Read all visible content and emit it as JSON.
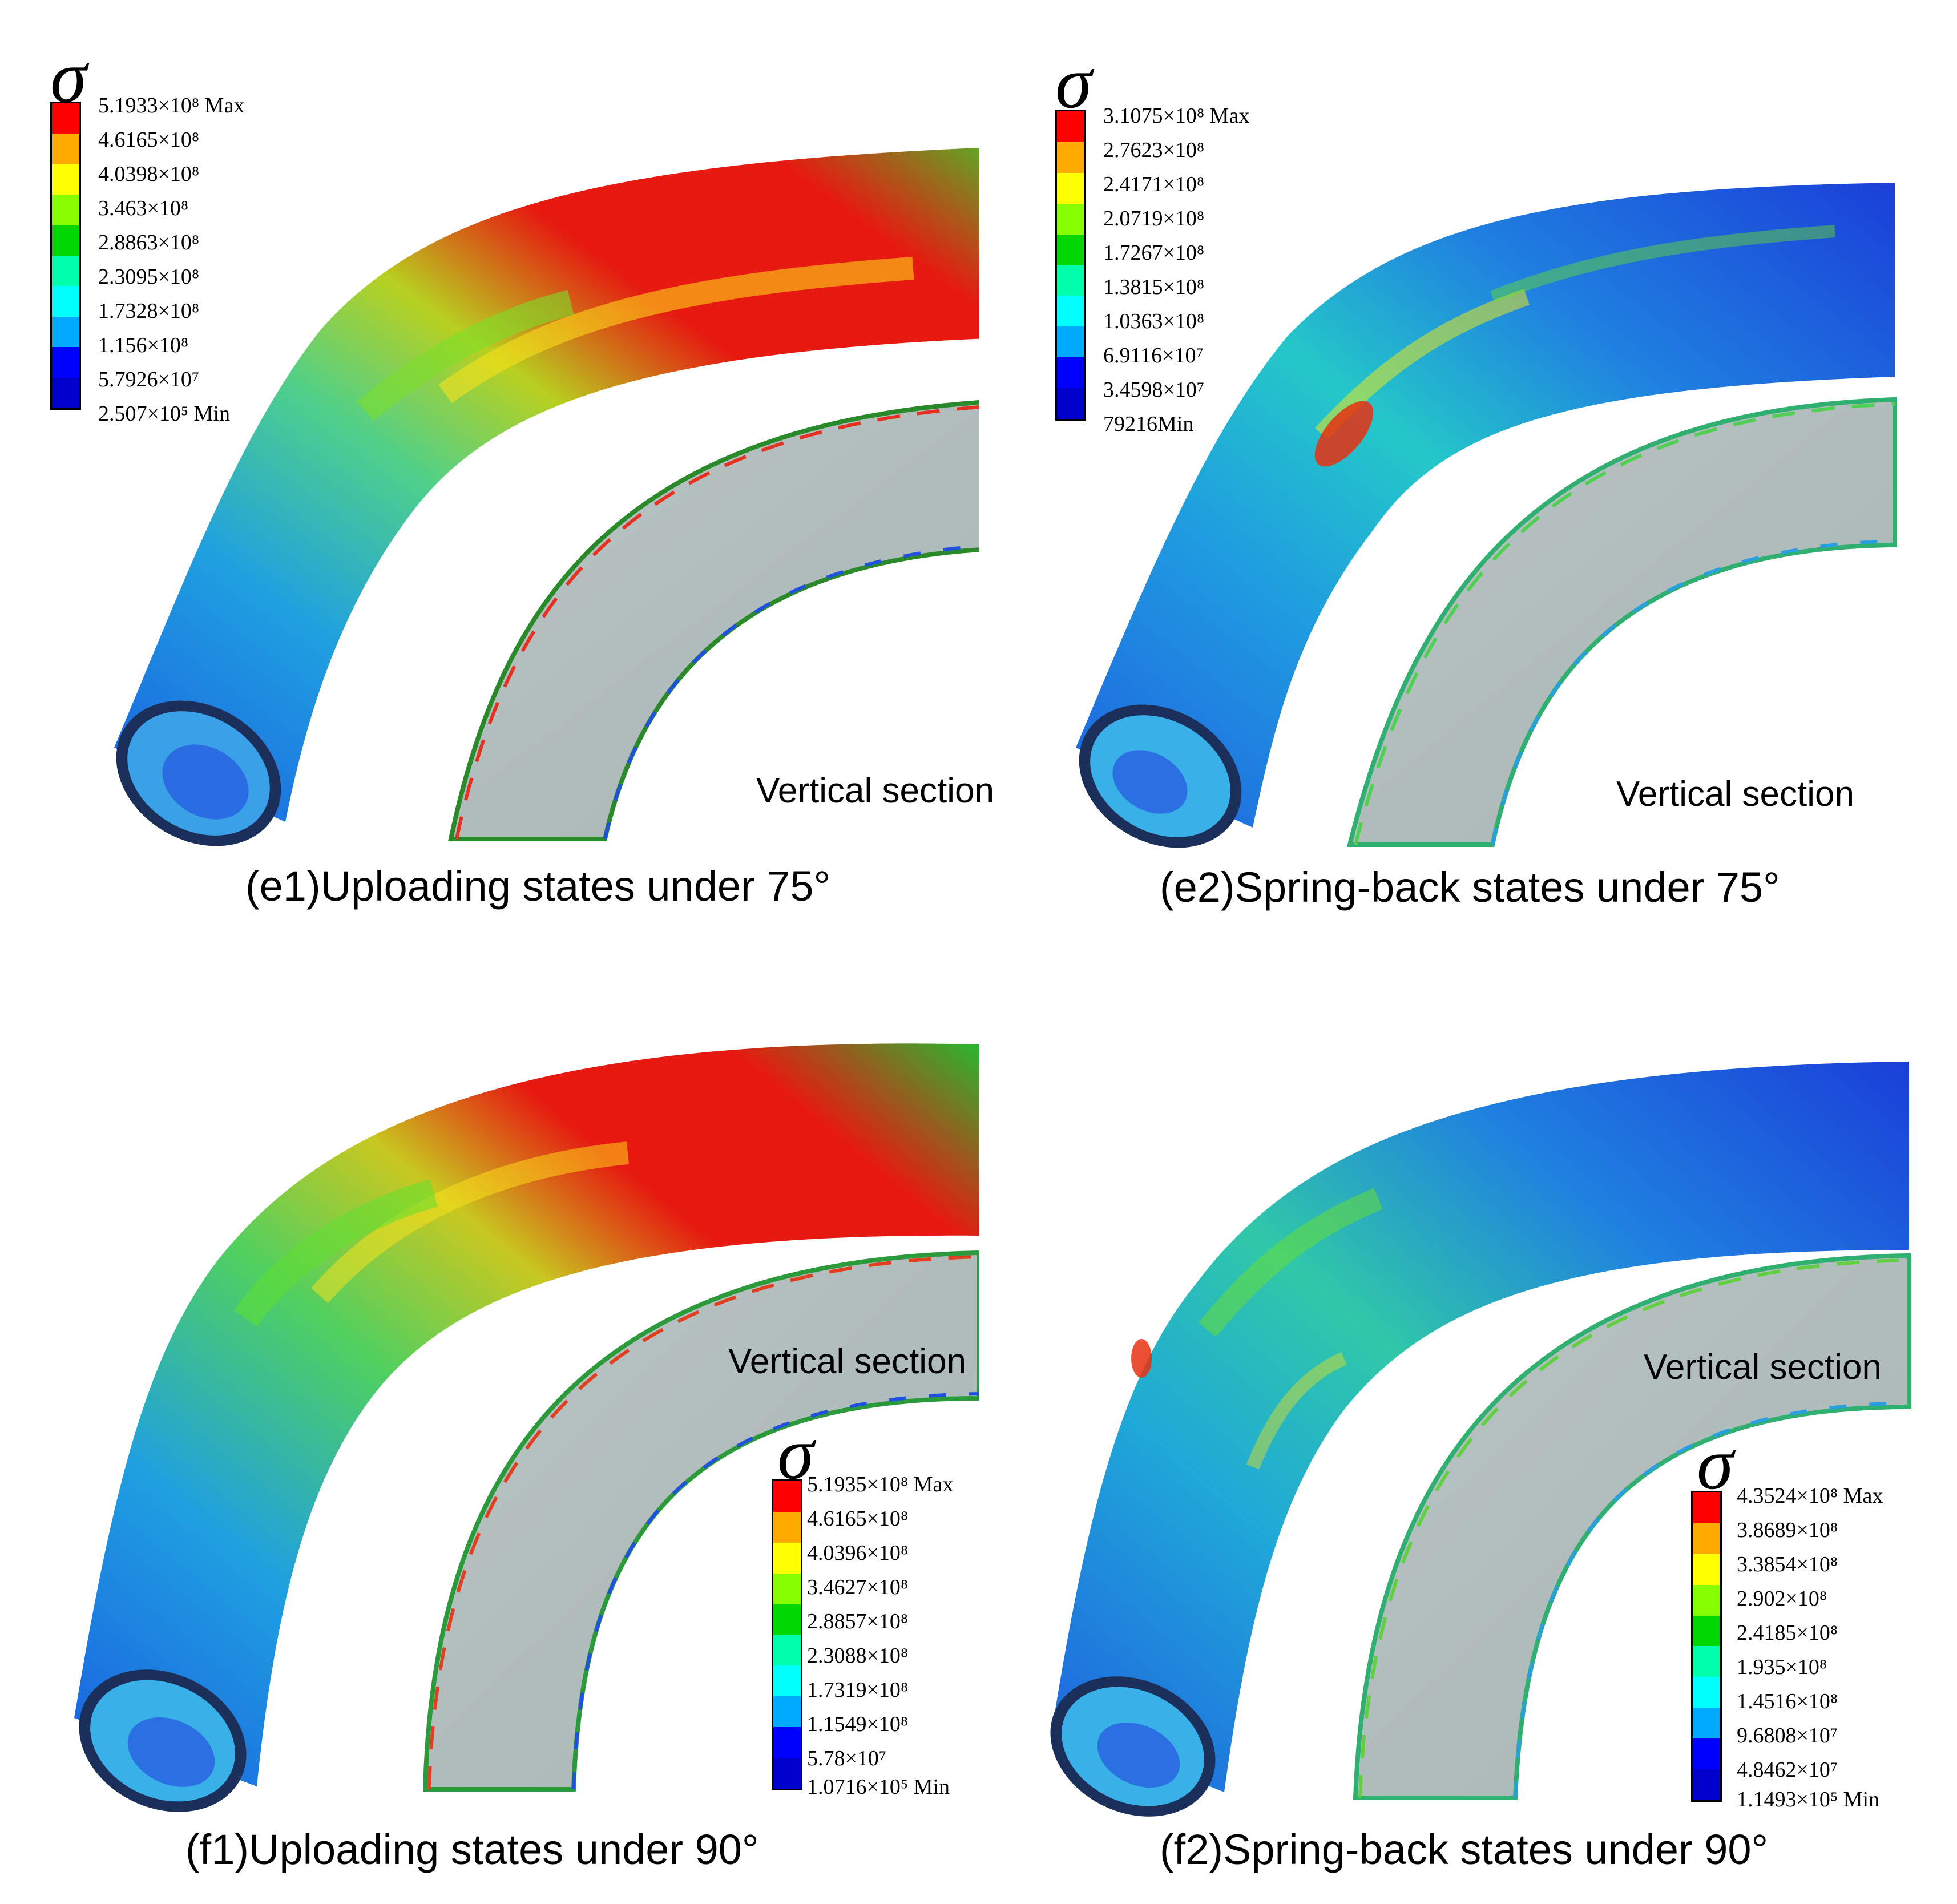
{
  "colors": [
    "#ff0000",
    "#ffaa00",
    "#ffff00",
    "#88ff00",
    "#00d700",
    "#00ffaa",
    "#00ffff",
    "#00aaff",
    "#0000ff"
  ],
  "panels": [
    {
      "id": "e1",
      "caption": "(e1)Uploading states under 75°",
      "section_label": "Vertical section",
      "legend_labels": [
        "5.1933×10⁸ Max",
        "4.6165×10⁸",
        "4.0398×10⁸",
        "3.463×10⁸",
        "2.8863×10⁸",
        "2.3095×10⁸",
        "1.7328×10⁸",
        "1.156×10⁸",
        "5.7926×10⁷",
        "2.507×10⁵ Min"
      ]
    },
    {
      "id": "e2",
      "caption": "(e2)Spring-back states under 75°",
      "section_label": "Vertical section",
      "legend_labels": [
        "3.1075×10⁸ Max",
        "2.7623×10⁸",
        "2.4171×10⁸",
        "2.0719×10⁸",
        "1.7267×10⁸",
        "1.3815×10⁸",
        "1.0363×10⁸",
        "6.9116×10⁷",
        "3.4598×10⁷",
        "79216Min"
      ]
    },
    {
      "id": "f1",
      "caption": "(f1)Uploading states under 90°",
      "section_label": "Vertical section",
      "legend_labels": [
        "5.1935×10⁸ Max",
        "4.6165×10⁸",
        "4.0396×10⁸",
        "3.4627×10⁸",
        "2.8857×10⁸",
        "2.3088×10⁸",
        "1.7319×10⁸",
        "1.1549×10⁸",
        "5.78×10⁷",
        "1.0716×10⁵ Min"
      ]
    },
    {
      "id": "f2",
      "caption": "(f2)Spring-back states under 90°",
      "section_label": "Vertical section",
      "legend_labels": [
        "4.3524×10⁸ Max",
        "3.8689×10⁸",
        "3.3854×10⁸",
        "2.902×10⁸",
        "2.4185×10⁸",
        "1.935×10⁸",
        "1.4516×10⁸",
        "9.6808×10⁷",
        "4.8462×10⁷",
        "1.1493×10⁵ Min"
      ]
    }
  ],
  "sigma": "σ"
}
